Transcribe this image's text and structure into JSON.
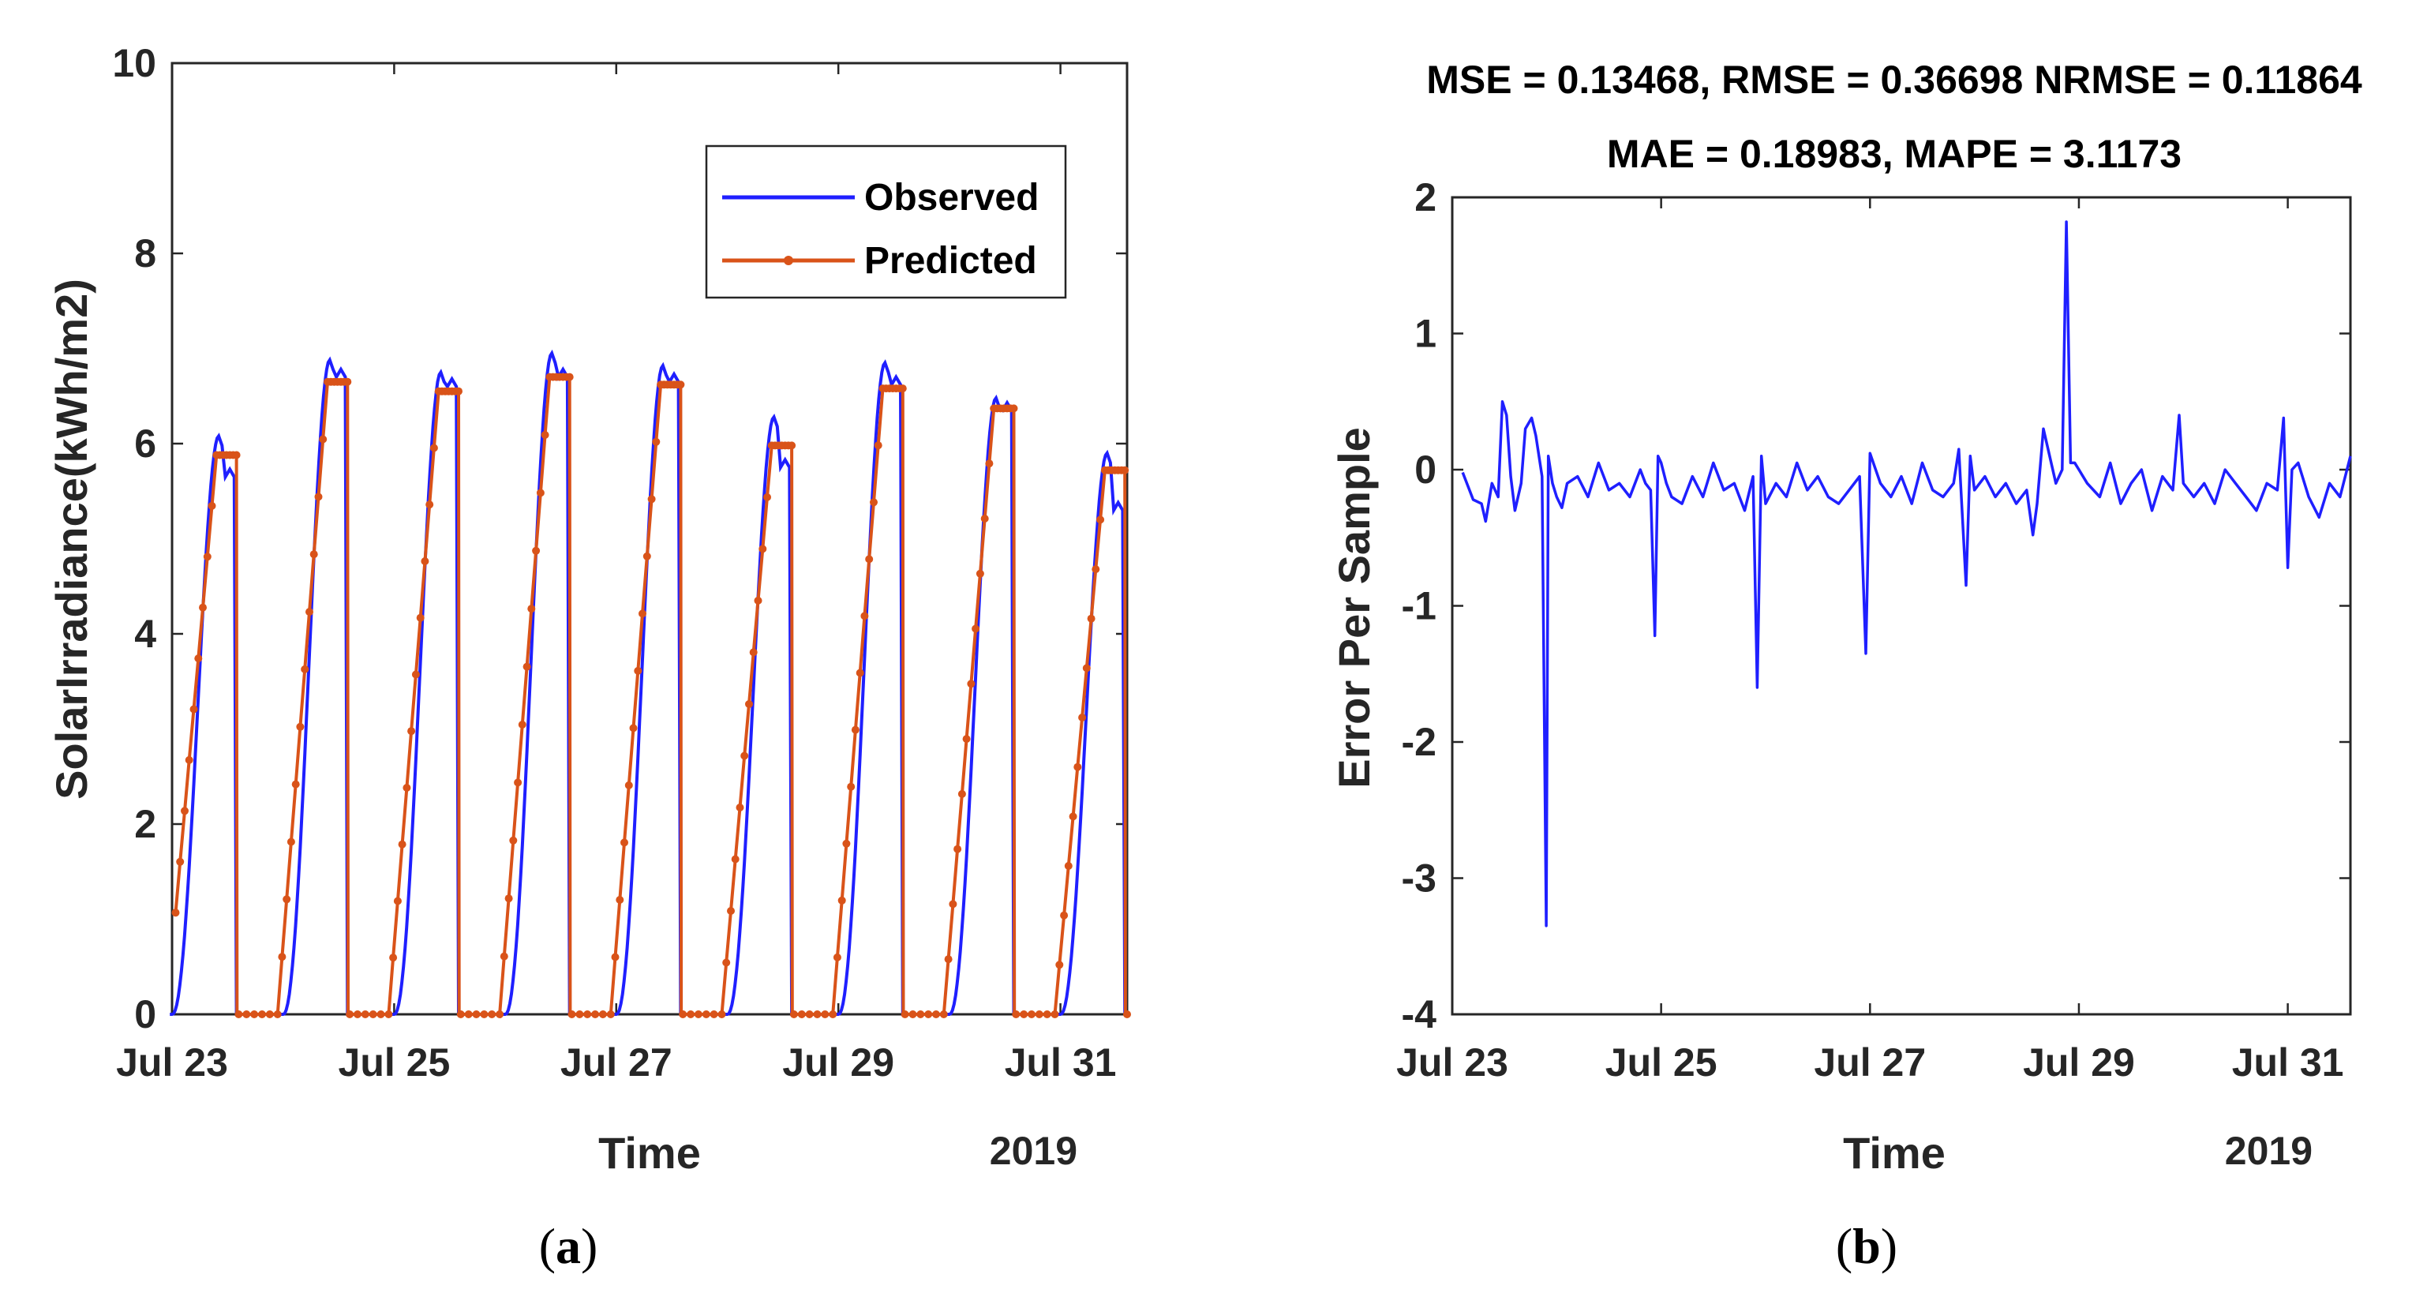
{
  "chart_data": [
    {
      "id": "a",
      "type": "line",
      "ylabel": "SolarIrradiance(kWh/m2)",
      "xlabel": "Time",
      "x_secondary_label": "2019",
      "ylim": [
        0,
        10
      ],
      "yticks": [
        "0",
        "2",
        "4",
        "6",
        "8",
        "10"
      ],
      "xlim_days": [
        0,
        8.6
      ],
      "xtick_days": [
        0,
        2,
        4,
        6,
        8
      ],
      "xticks": [
        "Jul 23",
        "Jul 25",
        "Jul 27",
        "Jul 29",
        "Jul 31"
      ],
      "legend": {
        "placement": "top-right",
        "entries": [
          "Observed",
          "Predicted"
        ]
      },
      "series": [
        {
          "name": "Observed",
          "color": "#1f1fff",
          "days": [
            {
              "peak": 6.08,
              "plateau": 5.65
            },
            {
              "peak": 6.88,
              "plateau": 6.7
            },
            {
              "peak": 6.75,
              "plateau": 6.6
            },
            {
              "peak": 6.95,
              "plateau": 6.7
            },
            {
              "peak": 6.82,
              "plateau": 6.65
            },
            {
              "peak": 6.28,
              "plateau": 5.75
            },
            {
              "peak": 6.85,
              "plateau": 6.62
            },
            {
              "peak": 6.48,
              "plateau": 6.35
            },
            {
              "peak": 5.9,
              "plateau": 5.3
            }
          ]
        },
        {
          "name": "Predicted",
          "color": "#d95319",
          "days": [
            {
              "plateau": 5.88
            },
            {
              "plateau": 6.65
            },
            {
              "plateau": 6.55
            },
            {
              "plateau": 6.7
            },
            {
              "plateau": 6.62
            },
            {
              "plateau": 5.98
            },
            {
              "plateau": 6.58
            },
            {
              "plateau": 6.37
            },
            {
              "plateau": 5.72
            }
          ]
        }
      ]
    },
    {
      "id": "b",
      "type": "line",
      "title_line1": "MSE = 0.13468, RMSE = 0.36698 NRMSE = 0.11864",
      "title_line2": "MAE = 0.18983, MAPE = 3.1173",
      "ylabel": "Error Per Sample",
      "xlabel": "Time",
      "x_secondary_label": "2019",
      "ylim": [
        -4,
        2
      ],
      "yticks": [
        "-4",
        "-3",
        "-2",
        "-1",
        "0",
        "1",
        "2"
      ],
      "xlim_days": [
        0,
        8.6
      ],
      "xtick_days": [
        0,
        2,
        4,
        6,
        8
      ],
      "xticks": [
        "Jul 23",
        "Jul 25",
        "Jul 27",
        "Jul 29",
        "Jul 31"
      ],
      "series": [
        {
          "name": "Error",
          "color": "#1f1fff",
          "x_days": [
            0.1,
            0.2,
            0.28,
            0.32,
            0.38,
            0.44,
            0.48,
            0.52,
            0.56,
            0.6,
            0.66,
            0.7,
            0.76,
            0.8,
            0.86,
            0.9,
            0.92,
            0.96,
            1.0,
            1.05,
            1.1,
            1.2,
            1.3,
            1.4,
            1.5,
            1.6,
            1.7,
            1.8,
            1.85,
            1.9,
            1.94,
            1.97,
            2.0,
            2.05,
            2.1,
            2.2,
            2.3,
            2.4,
            2.5,
            2.6,
            2.7,
            2.8,
            2.88,
            2.92,
            2.96,
            3.0,
            3.1,
            3.2,
            3.3,
            3.4,
            3.5,
            3.6,
            3.7,
            3.8,
            3.9,
            3.96,
            4.0,
            4.1,
            4.2,
            4.3,
            4.4,
            4.5,
            4.6,
            4.7,
            4.8,
            4.85,
            4.92,
            4.96,
            5.0,
            5.1,
            5.2,
            5.3,
            5.4,
            5.5,
            5.56,
            5.6,
            5.66,
            5.72,
            5.78,
            5.84,
            5.88,
            5.92,
            5.96,
            6.0,
            6.04,
            6.08,
            6.2,
            6.3,
            6.4,
            6.5,
            6.6,
            6.7,
            6.8,
            6.9,
            6.96,
            7.0,
            7.1,
            7.2,
            7.3,
            7.4,
            7.5,
            7.6,
            7.7,
            7.8,
            7.9,
            7.96,
            8.0,
            8.04,
            8.1,
            8.2,
            8.3,
            8.4,
            8.5,
            8.6
          ],
          "values": [
            -0.02,
            -0.22,
            -0.25,
            -0.38,
            -0.1,
            -0.2,
            0.5,
            0.4,
            -0.05,
            -0.3,
            -0.1,
            0.3,
            0.38,
            0.25,
            -0.05,
            -3.35,
            0.1,
            -0.1,
            -0.2,
            -0.28,
            -0.1,
            -0.05,
            -0.2,
            0.05,
            -0.15,
            -0.1,
            -0.2,
            0.0,
            -0.1,
            -0.15,
            -1.22,
            0.1,
            0.05,
            -0.1,
            -0.2,
            -0.25,
            -0.05,
            -0.2,
            0.05,
            -0.15,
            -0.1,
            -0.3,
            -0.05,
            -1.6,
            0.1,
            -0.25,
            -0.1,
            -0.2,
            0.05,
            -0.15,
            -0.05,
            -0.2,
            -0.25,
            -0.15,
            -0.05,
            -1.35,
            0.12,
            -0.1,
            -0.2,
            -0.05,
            -0.25,
            0.05,
            -0.15,
            -0.2,
            -0.1,
            0.15,
            -0.85,
            0.1,
            -0.15,
            -0.05,
            -0.2,
            -0.1,
            -0.25,
            -0.15,
            -0.48,
            -0.25,
            0.3,
            0.1,
            -0.1,
            0.0,
            1.82,
            0.05,
            0.05,
            0.0,
            -0.05,
            -0.1,
            -0.2,
            0.05,
            -0.25,
            -0.1,
            0.0,
            -0.3,
            -0.05,
            -0.15,
            0.4,
            -0.1,
            -0.2,
            -0.1,
            -0.25,
            0.0,
            -0.1,
            -0.2,
            -0.3,
            -0.1,
            -0.15,
            0.38,
            -0.72,
            0.0,
            0.05,
            -0.2,
            -0.35,
            -0.1,
            -0.2,
            0.1
          ],
          "_note": "estimated from image"
        }
      ]
    }
  ],
  "captions": {
    "a_open": "(",
    "a_letter": "a",
    "a_close": ")",
    "b_open": "(",
    "b_letter": "b",
    "b_close": ")"
  }
}
